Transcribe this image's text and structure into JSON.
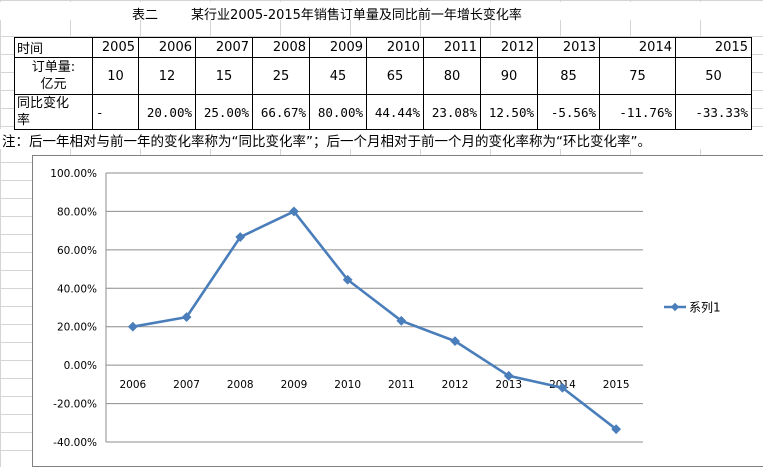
{
  "header": {
    "title": "表二        某行业2005-2015年销售订单量及同比前一年增长变化率"
  },
  "table": {
    "header_label": "时间",
    "years": [
      "2005",
      "2006",
      "2007",
      "2008",
      "2009",
      "2010",
      "2011",
      "2012",
      "2013",
      "2014",
      "2015"
    ],
    "row1_label": [
      "订单量:",
      "亿元"
    ],
    "orders": [
      "10",
      "12",
      "15",
      "25",
      "45",
      "65",
      "80",
      "90",
      "85",
      "75",
      "50"
    ],
    "row2_label": [
      "同比变化",
      "率"
    ],
    "rates": [
      "-",
      "20.00%",
      "25.00%",
      "66.67%",
      "80.00%",
      "44.44%",
      "23.08%",
      "12.50%",
      "-5.56%",
      "-11.76%",
      "-33.33%"
    ]
  },
  "note": "注：后一年相对与前一年的变化率称为“同比变化率”；后一个月相对于前一个月的变化率称为“环比变化率”。",
  "chart_data": {
    "type": "line",
    "categories": [
      "2006",
      "2007",
      "2008",
      "2009",
      "2010",
      "2011",
      "2012",
      "2013",
      "2014",
      "2015"
    ],
    "series": [
      {
        "name": "系列1",
        "values": [
          20.0,
          25.0,
          66.67,
          80.0,
          44.44,
          23.08,
          12.5,
          -5.56,
          -11.76,
          -33.33
        ]
      }
    ],
    "ylim": [
      -40,
      100
    ],
    "yticks": [
      100,
      80,
      60,
      40,
      20,
      0,
      -20,
      -40
    ],
    "ytick_labels": [
      "100.00%",
      "80.00%",
      "60.00%",
      "40.00%",
      "20.00%",
      "0.00%",
      "-20.00%",
      "-40.00%"
    ],
    "grid": true,
    "legend": "right",
    "color": "#4a7ebb",
    "title": "",
    "xlabel": "",
    "ylabel": ""
  }
}
